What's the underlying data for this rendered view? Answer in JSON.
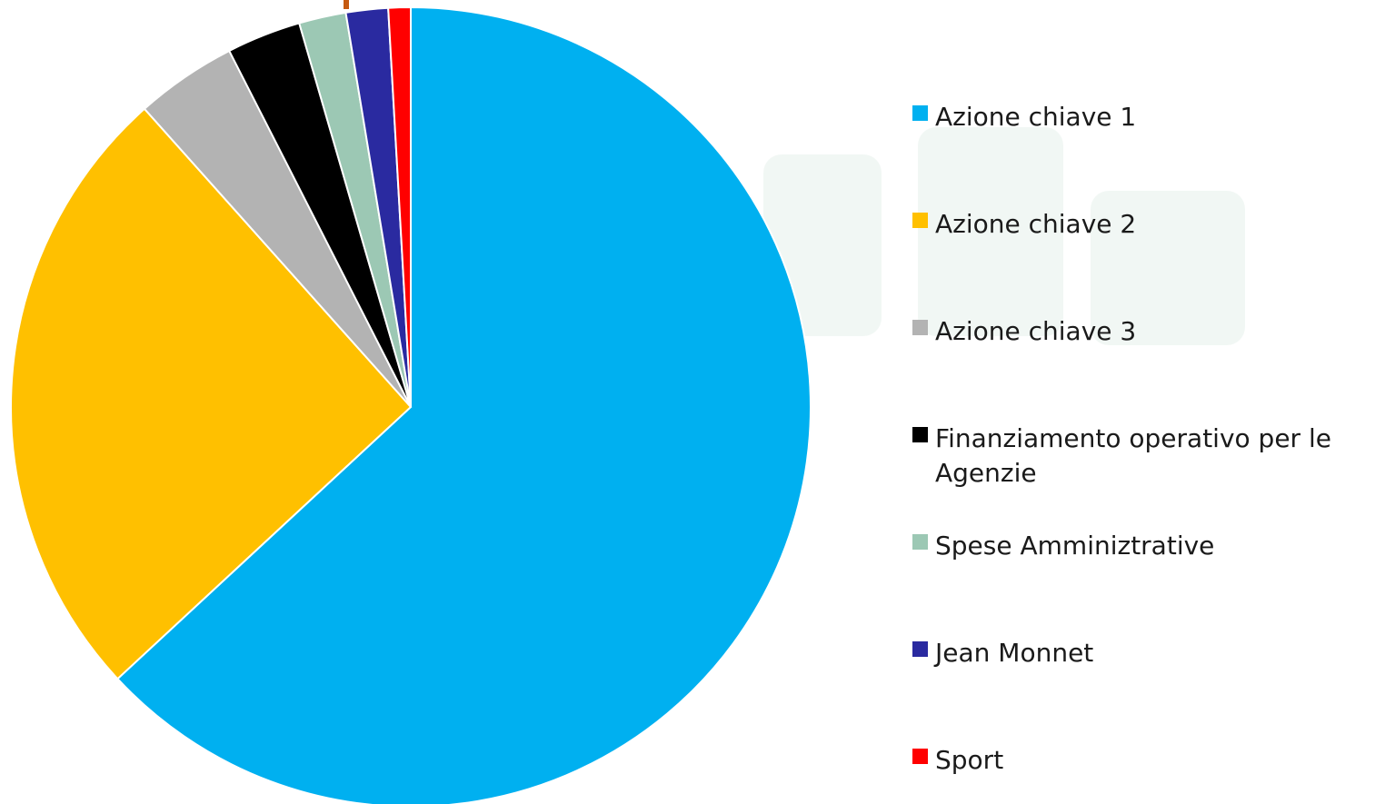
{
  "chart_data": {
    "type": "pie",
    "title": "",
    "categories": [
      "Azione chiave 1",
      "Azione chiave 2",
      "Azione chiave 3",
      "Finanziamento operativo per le Agenzie",
      "Spese Amminiztrative",
      "Jean Monnet",
      "Sport"
    ],
    "values": [
      63.1,
      25.3,
      4.1,
      3.0,
      1.9,
      1.7,
      0.9
    ],
    "colors": [
      "#00B0F0",
      "#FFC000",
      "#B3B3B3",
      "#000000",
      "#9CC8B4",
      "#2A2AA0",
      "#FF0000"
    ],
    "start_angle_deg": 0,
    "direction": "clockwise",
    "legend_position": "right"
  },
  "legend": {
    "items": [
      {
        "label": "Azione chiave 1",
        "color": "#00B0F0"
      },
      {
        "label": "Azione chiave 2",
        "color": "#FFC000"
      },
      {
        "label": "Azione chiave 3",
        "color": "#B3B3B3"
      },
      {
        "label": "Finanziamento operativo per le Agenzie",
        "color": "#000000"
      },
      {
        "label": "Spese Amminiztrative",
        "color": "#9CC8B4"
      },
      {
        "label": "Jean Monnet",
        "color": "#2A2AA0"
      },
      {
        "label": "Sport",
        "color": "#FF0000"
      }
    ]
  }
}
